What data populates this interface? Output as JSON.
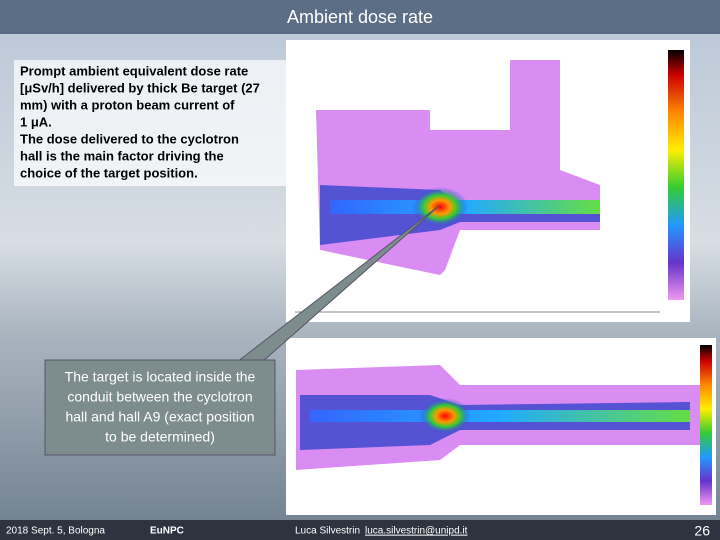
{
  "header": {
    "title": "Ambient dose rate"
  },
  "description": {
    "lines": [
      "Prompt ambient equivalent dose rate",
      "[μSv/h] delivered by thick Be target (27",
      "mm) with a proton beam current of",
      "1 μA.",
      "The dose delivered to the cyclotron",
      "hall is the main factor driving the",
      "choice of the target position."
    ]
  },
  "callout": {
    "lines": [
      "The target is located inside the",
      "conduit between the cyclotron",
      "hall and hall A9 (exact position",
      "to be determined)"
    ]
  },
  "footer": {
    "date": "2018 Sept. 5, Bologna",
    "conference": "EuNPC",
    "author": "Luca Silvestrin",
    "email": "luca.silvestrin@unipd.it",
    "page": "26"
  }
}
